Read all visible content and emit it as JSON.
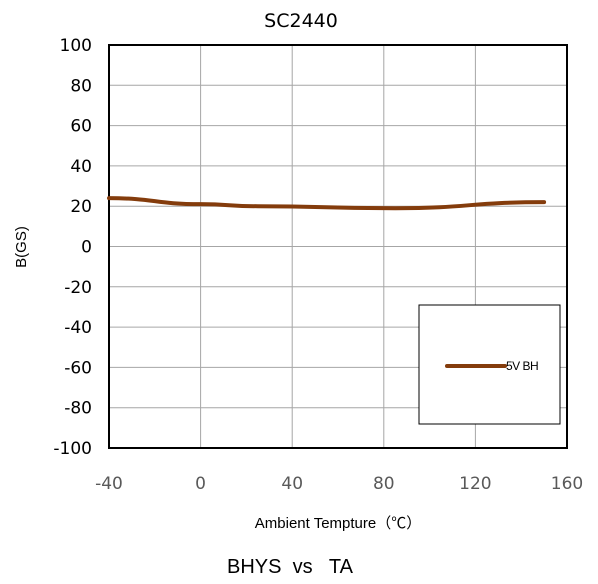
{
  "chart_data": {
    "type": "line",
    "title": "SC2440",
    "xlabel": "Ambient Tempture（℃）",
    "ylabel": "B(GS)",
    "caption": "BHYS  vs   TA",
    "xlim": [
      -40,
      160
    ],
    "ylim": [
      -100,
      100
    ],
    "x_ticks": [
      -40,
      0,
      40,
      80,
      120,
      160
    ],
    "y_ticks": [
      100,
      80,
      60,
      40,
      20,
      0,
      -20,
      -40,
      -60,
      -80,
      -100
    ],
    "grid": true,
    "legend_position": "bottom-right",
    "series": [
      {
        "name": "5V BH",
        "color": "#843c0c",
        "x": [
          -40,
          0,
          25,
          85,
          150
        ],
        "y": [
          24,
          21,
          20,
          19,
          22
        ]
      }
    ]
  }
}
